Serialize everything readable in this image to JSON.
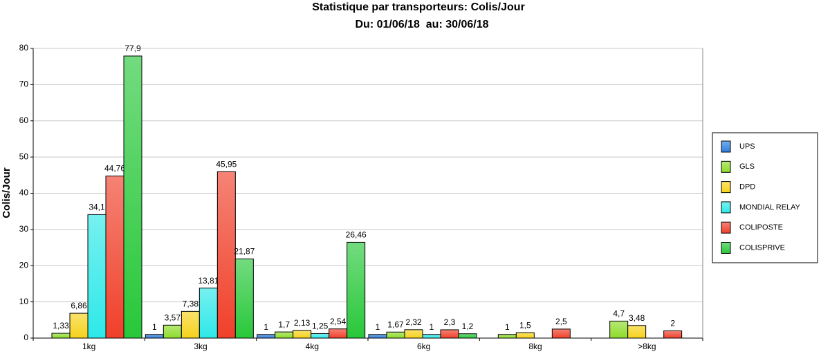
{
  "chart_data": {
    "type": "bar",
    "title": "Statistique par transporteurs: Colis/Jour",
    "subtitle": "Du: 01/06/18  au: 30/06/18",
    "y_label": "Colis/Jour",
    "categories": [
      "1kg",
      "3kg",
      "4kg",
      "6kg",
      "8kg",
      ">8kg"
    ],
    "series": [
      {
        "name": "UPS",
        "color": "#2f7fe0",
        "values": [
          null,
          1,
          1,
          1,
          null,
          null
        ],
        "value_labels": [
          null,
          "1",
          "1",
          "1",
          null,
          null
        ]
      },
      {
        "name": "GLS",
        "color": "#8edc2a",
        "values": [
          1.33,
          3.57,
          1.7,
          1.67,
          1,
          4.7
        ],
        "value_labels": [
          "1,33",
          "3,57",
          "1,7",
          "1,67",
          "1",
          "4,7"
        ]
      },
      {
        "name": "DPD",
        "color": "#f5d21c",
        "values": [
          6.86,
          7.38,
          2.13,
          2.32,
          1.5,
          3.48
        ],
        "value_labels": [
          "6,86",
          "7,38",
          "2,13",
          "2,32",
          "1,5",
          "3,48"
        ]
      },
      {
        "name": "MONDIAL RELAY",
        "color": "#2ee8e8",
        "values": [
          34.1,
          13.81,
          1.25,
          1,
          null,
          null
        ],
        "value_labels": [
          "34,1",
          "13,81",
          "1,25",
          "1",
          null,
          null
        ]
      },
      {
        "name": "COLIPOSTE",
        "color": "#f0402a",
        "values": [
          44.76,
          45.95,
          2.54,
          2.3,
          2.5,
          2
        ],
        "value_labels": [
          "44,76",
          "45,95",
          "2,54",
          "2,3",
          "2,5",
          "2"
        ]
      },
      {
        "name": "COLISPRIVE",
        "color": "#28c83a",
        "values": [
          77.9,
          21.87,
          26.46,
          1.2,
          null,
          null
        ],
        "value_labels": [
          "77,9",
          "21,87",
          "26,46",
          "1,2",
          null,
          null
        ]
      }
    ],
    "ylim": [
      0,
      80
    ],
    "yticks": [
      0,
      10,
      20,
      30,
      40,
      50,
      60,
      70,
      80
    ],
    "grid": true,
    "legend": "right"
  }
}
